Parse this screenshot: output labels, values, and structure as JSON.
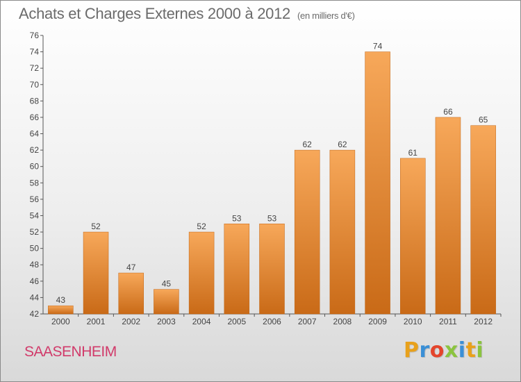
{
  "header": {
    "title": "Achats et Charges Externes 2000 à 2012",
    "unit": "(en milliers d'€)"
  },
  "footer": {
    "commune": "SAASENHEIM",
    "logo": {
      "letters": [
        "P",
        "r",
        "o",
        "x",
        "i",
        "t",
        "i"
      ],
      "colors": [
        "#e8a11c",
        "#3a8fd6",
        "#e4452c",
        "#8bc43f",
        "#3a8fd6",
        "#e8a11c",
        "#8bc43f"
      ]
    }
  },
  "colors": {
    "bar_top": "#f7a85a",
    "bar_bottom": "#c96a17",
    "axis": "#555555",
    "grid": "#dddddd"
  },
  "chart_data": {
    "type": "bar",
    "categories": [
      "2000",
      "2001",
      "2002",
      "2003",
      "2004",
      "2005",
      "2006",
      "2007",
      "2008",
      "2009",
      "2010",
      "2011",
      "2012"
    ],
    "values": [
      43,
      52,
      47,
      45,
      52,
      53,
      53,
      62,
      62,
      74,
      61,
      66,
      65
    ],
    "ylim": [
      42,
      76
    ],
    "yticks": [
      42,
      44,
      46,
      48,
      50,
      52,
      54,
      56,
      58,
      60,
      62,
      64,
      66,
      68,
      70,
      72,
      74,
      76
    ],
    "grid": false
  }
}
